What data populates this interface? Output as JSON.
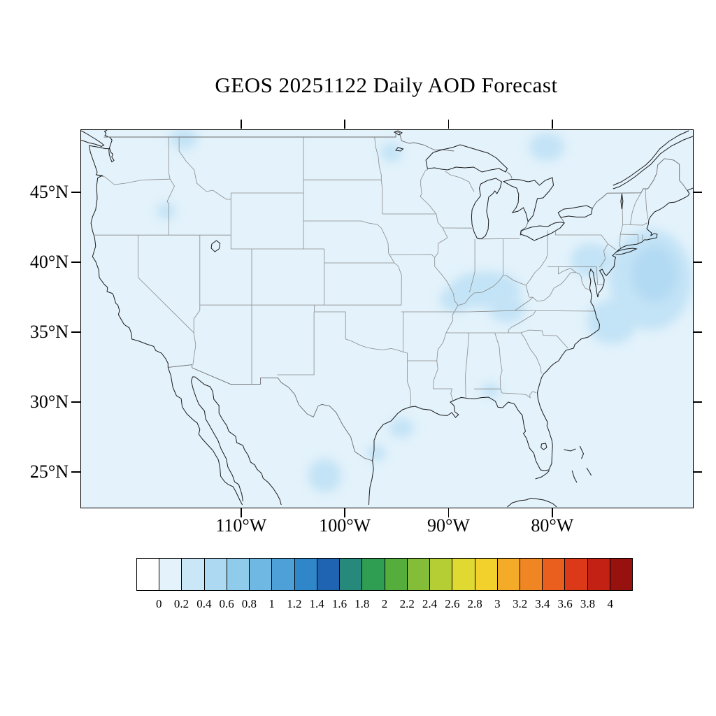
{
  "figure": {
    "title": "GEOS 20251122 Daily AOD Forecast"
  },
  "axes": {
    "lat_ticks": [
      {
        "label": "45°N",
        "value": 45
      },
      {
        "label": "40°N",
        "value": 40
      },
      {
        "label": "35°N",
        "value": 35
      },
      {
        "label": "30°N",
        "value": 30
      },
      {
        "label": "25°N",
        "value": 25
      }
    ],
    "lon_ticks": [
      {
        "label": "110°W",
        "value": -110
      },
      {
        "label": "100°W",
        "value": -100
      },
      {
        "label": "90°W",
        "value": -90
      },
      {
        "label": "80°W",
        "value": -80
      }
    ]
  },
  "colorbar": {
    "levels": [
      "0",
      "0.2",
      "0.4",
      "0.6",
      "0.8",
      "1",
      "1.2",
      "1.4",
      "1.6",
      "1.8",
      "2",
      "2.2",
      "2.4",
      "2.6",
      "2.8",
      "3",
      "3.2",
      "3.4",
      "3.6",
      "3.8",
      "4"
    ],
    "colors": [
      "#ffffff",
      "#e3f2fb",
      "#c9e7f7",
      "#addaf2",
      "#8fcbeb",
      "#6fb8e3",
      "#4da1d8",
      "#2f86c9",
      "#1f64b2",
      "#27897b",
      "#2f9e52",
      "#55ae3c",
      "#84be38",
      "#b5ce34",
      "#dfd931",
      "#f2d12d",
      "#f3ab28",
      "#f08623",
      "#ea5f1e",
      "#dc3918",
      "#c22114",
      "#97110e"
    ]
  },
  "map": {
    "base_fill": "#e3f2fb",
    "patch_fill": "#c3e3f6",
    "patch_core_fill": "#b2daf3",
    "domain": {
      "lon_min": -125.5,
      "lon_max": -66.5,
      "lat_min": 22.5,
      "lat_max": 49.5
    },
    "aod_patches": [
      {
        "lon": -70.6,
        "lat": 38.8,
        "rx": 4.0,
        "ry": 3.6
      },
      {
        "lon": -70.2,
        "lat": 39.2,
        "rx": 2.2,
        "ry": 2.0,
        "core": true
      },
      {
        "lon": -76.3,
        "lat": 40.2,
        "rx": 2.0,
        "ry": 1.2
      },
      {
        "lon": -74.3,
        "lat": 35.8,
        "rx": 2.4,
        "ry": 1.6
      },
      {
        "lon": -86.5,
        "lat": 38.1,
        "rx": 3.4,
        "ry": 1.3
      },
      {
        "lon": -89.4,
        "lat": 37.4,
        "rx": 1.5,
        "ry": 0.9
      },
      {
        "lon": -84.4,
        "lat": 36.7,
        "rx": 1.7,
        "ry": 1.0
      },
      {
        "lon": -102.0,
        "lat": 24.8,
        "rx": 1.6,
        "ry": 1.2
      },
      {
        "lon": -94.6,
        "lat": 28.2,
        "rx": 1.2,
        "ry": 0.7
      },
      {
        "lon": -117.3,
        "lat": 43.7,
        "rx": 0.9,
        "ry": 0.6
      },
      {
        "lon": -115.6,
        "lat": 48.9,
        "rx": 1.3,
        "ry": 0.8
      },
      {
        "lon": -80.6,
        "lat": 48.3,
        "rx": 1.7,
        "ry": 1.0
      },
      {
        "lon": -95.6,
        "lat": 47.9,
        "rx": 1.0,
        "ry": 0.7
      },
      {
        "lon": -86.0,
        "lat": 30.9,
        "rx": 0.9,
        "ry": 0.5
      },
      {
        "lon": -97.0,
        "lat": 26.4,
        "rx": 0.9,
        "ry": 0.6
      }
    ]
  }
}
